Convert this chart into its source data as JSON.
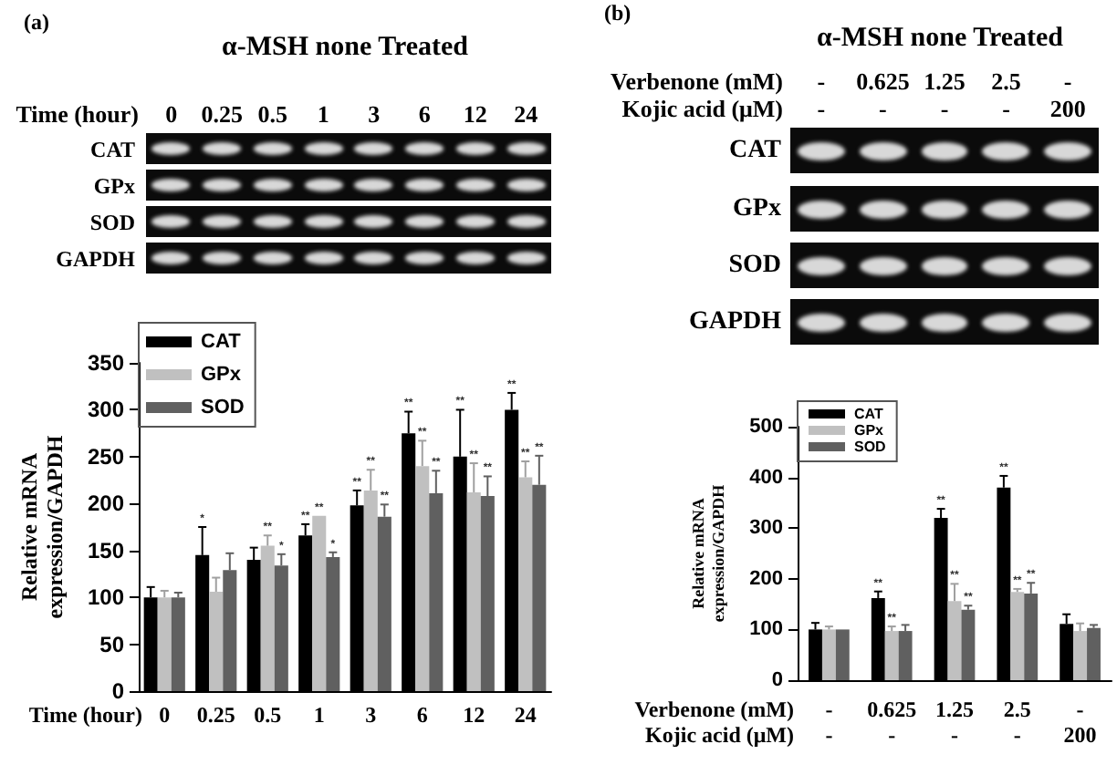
{
  "chart_data": [
    {
      "type": "bar",
      "title": "α-MSH none Treated",
      "xlabel": "Time (hour)",
      "ylabel": "Relative mRNA\nexpression/GAPDH",
      "categories": [
        "0",
        "0.25",
        "0.5",
        "1",
        "3",
        "6",
        "12",
        "24"
      ],
      "series": [
        {
          "name": "CAT",
          "color": "#000000",
          "values": [
            100,
            145,
            140,
            166,
            198,
            275,
            250,
            300
          ],
          "errors": [
            [
              100,
              111
            ],
            [
              145,
              175
            ],
            [
              140,
              153
            ],
            [
              166,
              178
            ],
            [
              198,
              214
            ],
            [
              275,
              298
            ],
            [
              250,
              300
            ],
            [
              300,
              318
            ]
          ]
        },
        {
          "name": "GPx",
          "color": "#c0c0c0",
          "values": [
            100,
            106,
            155,
            187,
            214,
            240,
            212,
            228
          ],
          "errors": [
            [
              100,
              107
            ],
            [
              106,
              121
            ],
            [
              155,
              166
            ],
            null,
            [
              214,
              236
            ],
            [
              240,
              267
            ],
            [
              212,
              243
            ],
            [
              228,
              245
            ]
          ]
        },
        {
          "name": "SOD",
          "color": "#606060",
          "values": [
            100,
            129,
            134,
            143,
            186,
            211,
            208,
            220
          ],
          "errors": [
            [
              100,
              105
            ],
            [
              129,
              147
            ],
            [
              134,
              146
            ],
            [
              143,
              148
            ],
            [
              186,
              199
            ],
            [
              211,
              235
            ],
            [
              208,
              229
            ],
            [
              220,
              251
            ]
          ]
        }
      ],
      "ylim": [
        0,
        350
      ],
      "yticks": [
        0,
        50,
        100,
        150,
        200,
        250,
        300,
        350
      ],
      "legend": "top left",
      "annotations": [
        "(a)",
        "CAT",
        "GPx",
        "SOD",
        "GAPDH",
        "*",
        "**",
        "*",
        "**",
        "**",
        "*",
        "**",
        "**",
        "**",
        "**",
        "**",
        "**",
        "**",
        "**",
        "**",
        "**",
        "**",
        "**"
      ]
    },
    {
      "type": "bar",
      "title": "α-MSH none Treated",
      "xlabel": "Verbenone (mM)\nKojic acid (μM)",
      "ylabel": "Relative mRNA\nexpression/GAPDH",
      "categories": [
        "-\n-",
        "0.625\n-",
        "1.25\n-",
        "2.5\n-",
        "-\n200"
      ],
      "series": [
        {
          "name": "CAT",
          "color": "#000000",
          "values": [
            100,
            162,
            320,
            380,
            111
          ],
          "errors": [
            [
              100,
              113
            ],
            [
              162,
              175
            ],
            [
              320,
              338
            ],
            [
              380,
              403
            ],
            [
              111,
              130
            ]
          ]
        },
        {
          "name": "GPx",
          "color": "#c0c0c0",
          "values": [
            100,
            97,
            156,
            174,
            97
          ],
          "errors": [
            [
              100,
              106
            ],
            [
              97,
              106
            ],
            [
              156,
              190
            ],
            [
              174,
              180
            ],
            [
              97,
              112
            ]
          ]
        },
        {
          "name": "SOD",
          "color": "#606060",
          "values": [
            100,
            97,
            139,
            171,
            103
          ],
          "errors": [
            null,
            [
              97,
              109
            ],
            [
              139,
              147
            ],
            [
              171,
              192
            ],
            [
              103,
              109
            ]
          ]
        }
      ],
      "ylim": [
        0,
        500
      ],
      "yticks": [
        0,
        100,
        200,
        300,
        400,
        500
      ],
      "legend": "top left",
      "annotations": [
        "(b)",
        "CAT",
        "GPx",
        "SOD",
        "GAPDH",
        "**",
        "**",
        "**",
        "**",
        "**",
        "**",
        "**",
        "**"
      ]
    }
  ]
}
